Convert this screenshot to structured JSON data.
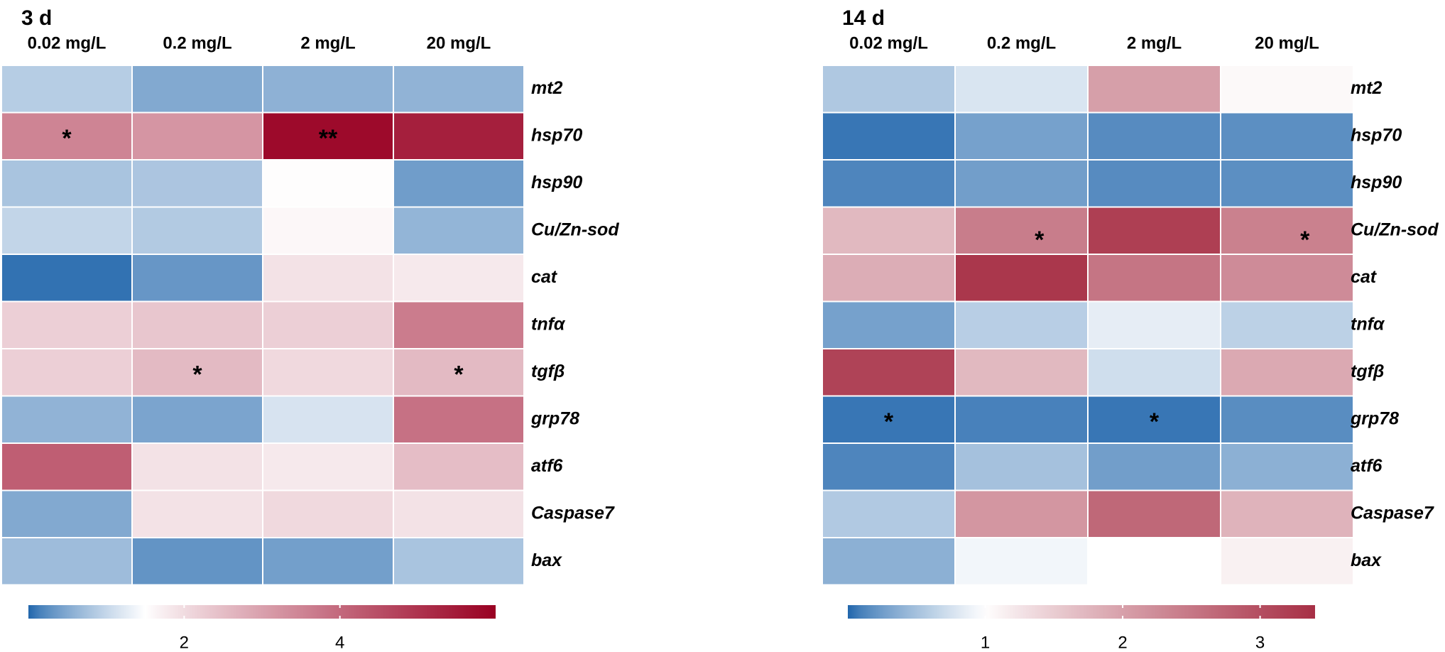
{
  "chart_data": [
    {
      "type": "heatmap",
      "title": "3 d",
      "columns": [
        "0.02 mg/L",
        "0.2 mg/L",
        "2 mg/L",
        "20 mg/L"
      ],
      "rows": [
        "mt2",
        "hsp70",
        "hsp90",
        "Cu/Zn-sod",
        "cat",
        "tnfα",
        "tgfβ",
        "grp78",
        "atf6",
        "Caspase7",
        "bax"
      ],
      "values": [
        [
          0.88,
          0.5,
          0.58,
          0.6
        ],
        [
          3.5,
          3.2,
          5.8,
          5.4
        ],
        [
          0.78,
          0.8,
          1.52,
          0.38
        ],
        [
          0.98,
          0.85,
          1.6,
          0.62
        ],
        [
          0.05,
          0.32,
          1.9,
          1.8
        ],
        [
          2.2,
          2.35,
          2.2,
          3.65
        ],
        [
          2.2,
          2.55,
          2.05,
          2.55
        ],
        [
          0.6,
          0.45,
          1.15,
          3.85
        ],
        [
          4.2,
          1.9,
          1.8,
          2.5
        ],
        [
          0.5,
          1.9,
          2.05,
          1.9
        ],
        [
          0.7,
          0.3,
          0.4,
          0.78
        ]
      ],
      "significance": [
        [
          "",
          "",
          "",
          ""
        ],
        [
          "*",
          "",
          "**",
          ""
        ],
        [
          "",
          "",
          "",
          ""
        ],
        [
          "",
          "",
          "",
          ""
        ],
        [
          "",
          "",
          "",
          ""
        ],
        [
          "",
          "",
          "",
          ""
        ],
        [
          "",
          "*",
          "",
          "*"
        ],
        [
          "",
          "",
          "",
          ""
        ],
        [
          "",
          "",
          "",
          ""
        ],
        [
          "",
          "",
          "",
          ""
        ],
        [
          "",
          "",
          "",
          ""
        ]
      ],
      "colorbar": {
        "range": [
          0.0,
          6.0
        ],
        "ticks": [
          2,
          4
        ],
        "tick_labels": [
          "2",
          "4"
        ],
        "colors": [
          "#2166ac",
          "#ffffff",
          "#990022"
        ],
        "white_at": 1.5
      }
    },
    {
      "type": "heatmap",
      "title": "14 d",
      "columns": [
        "0.02 mg/L",
        "0.2 mg/L",
        "2 mg/L",
        "20 mg/L"
      ],
      "rows": [
        "mt2",
        "hsp70",
        "hsp90",
        "Cu/Zn-sod",
        "cat",
        "tnfα",
        "tgfβ",
        "grp78",
        "atf6",
        "Caspase7",
        "bax"
      ],
      "values": [
        [
          0.55,
          0.78,
          2.02,
          1.05
        ],
        [
          0.05,
          0.28,
          0.15,
          0.17
        ],
        [
          0.12,
          0.26,
          0.15,
          0.17
        ],
        [
          1.72,
          2.42,
          3.2,
          2.38
        ],
        [
          1.85,
          3.3,
          2.52,
          2.25
        ],
        [
          0.28,
          0.6,
          0.85,
          0.62
        ],
        [
          3.15,
          1.72,
          0.72,
          1.9
        ],
        [
          0.05,
          0.1,
          0.05,
          0.16
        ],
        [
          0.12,
          0.5,
          0.26,
          0.38
        ],
        [
          0.56,
          2.12,
          2.68,
          1.78
        ],
        [
          0.38,
          0.92,
          1.0,
          1.12
        ]
      ],
      "significance": [
        [
          "",
          "",
          "",
          ""
        ],
        [
          "",
          "",
          "",
          ""
        ],
        [
          "",
          "",
          "",
          ""
        ],
        [
          "",
          "*",
          "",
          "*"
        ],
        [
          "",
          "",
          "",
          ""
        ],
        [
          "",
          "",
          "",
          ""
        ],
        [
          "",
          "",
          "",
          ""
        ],
        [
          "*",
          "",
          "*",
          ""
        ],
        [
          "",
          "",
          "",
          ""
        ],
        [
          "",
          "",
          "",
          ""
        ],
        [
          "",
          "",
          "",
          ""
        ]
      ],
      "colorbar": {
        "range": [
          0.0,
          3.4
        ],
        "ticks": [
          1,
          2,
          3
        ],
        "tick_labels": [
          "1",
          "2",
          "3"
        ],
        "colors": [
          "#2166ac",
          "#ffffff",
          "#a72f45"
        ],
        "white_at": 1.0
      }
    }
  ]
}
